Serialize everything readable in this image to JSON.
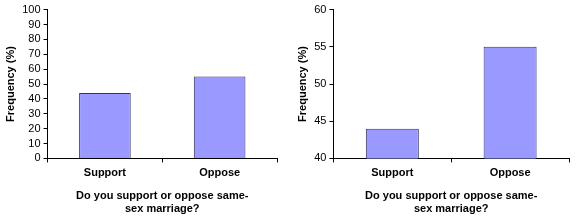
{
  "chart_data": [
    {
      "type": "bar",
      "x_label": "Do you support or oppose same-sex marriage?",
      "y_label": "Frequency (%)",
      "categories": [
        "Support",
        "Oppose"
      ],
      "values": [
        44,
        55
      ],
      "color": "#9999ff",
      "ylim": [
        0,
        100
      ],
      "yticks": [
        0,
        10,
        20,
        30,
        40,
        50,
        60,
        70,
        80,
        90,
        100
      ],
      "grid": false
    },
    {
      "type": "bar",
      "x_label": "Do you support or oppose same-sex marriage?",
      "y_label": "Frequency (%)",
      "categories": [
        "Support",
        "Oppose"
      ],
      "values": [
        44,
        55
      ],
      "color": "#9999ff",
      "ylim": [
        40,
        60
      ],
      "yticks": [
        40,
        45,
        50,
        55,
        60
      ],
      "grid": false
    }
  ]
}
